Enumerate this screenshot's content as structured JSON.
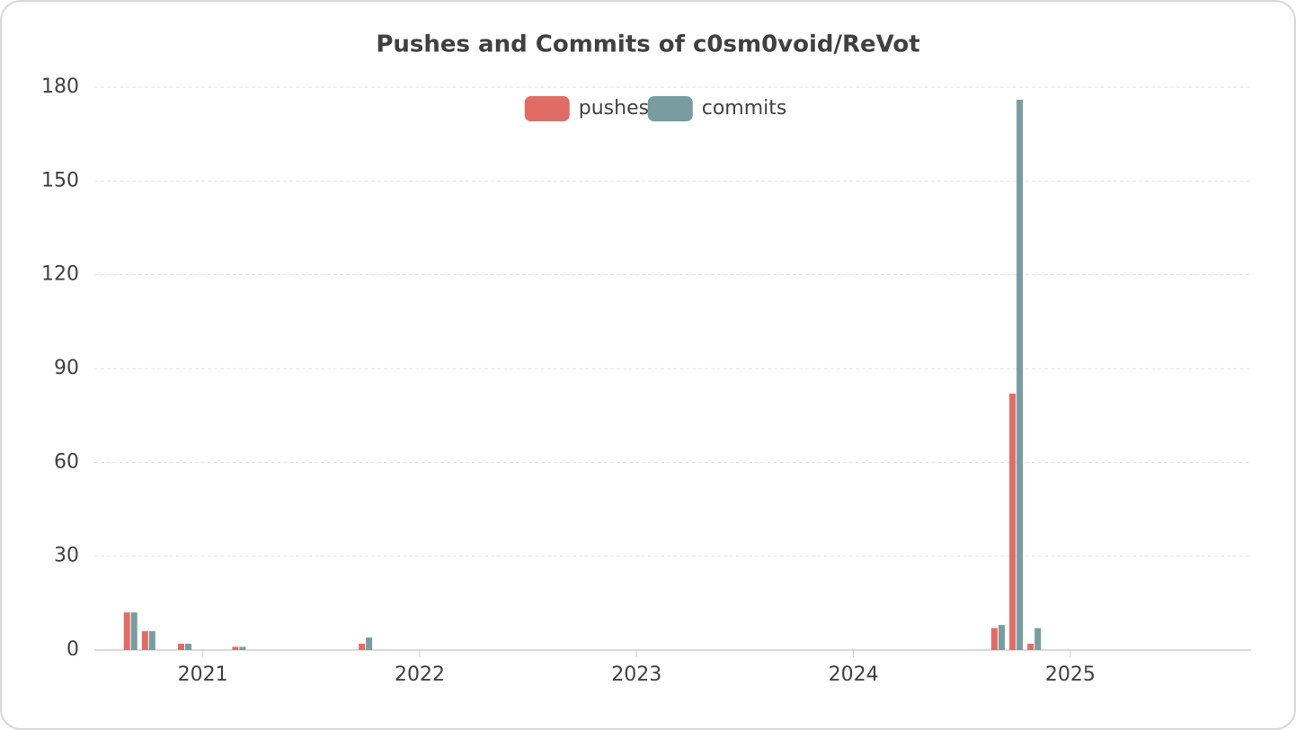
{
  "chart_data": {
    "type": "bar",
    "title": "Pushes and Commits of c0sm0void/ReVot",
    "x": [
      "2020-09",
      "2020-10",
      "2020-12",
      "2021-03",
      "2021-10",
      "2024-09",
      "2024-10",
      "2024-11"
    ],
    "series": [
      {
        "name": "pushes",
        "color": "#e06c66",
        "values": [
          12,
          6,
          2,
          1,
          2,
          7,
          82,
          2
        ]
      },
      {
        "name": "commits",
        "color": "#789ca0",
        "values": [
          12,
          6,
          2,
          1,
          4,
          8,
          176,
          7
        ]
      }
    ],
    "xlim": [
      "2020-07",
      "2025-11"
    ],
    "xticks": [
      "2021",
      "2022",
      "2023",
      "2024",
      "2025"
    ],
    "ylim": [
      0,
      180
    ],
    "yticks": [
      0,
      30,
      60,
      90,
      120,
      150,
      180
    ],
    "grid": true,
    "legend": "top"
  }
}
